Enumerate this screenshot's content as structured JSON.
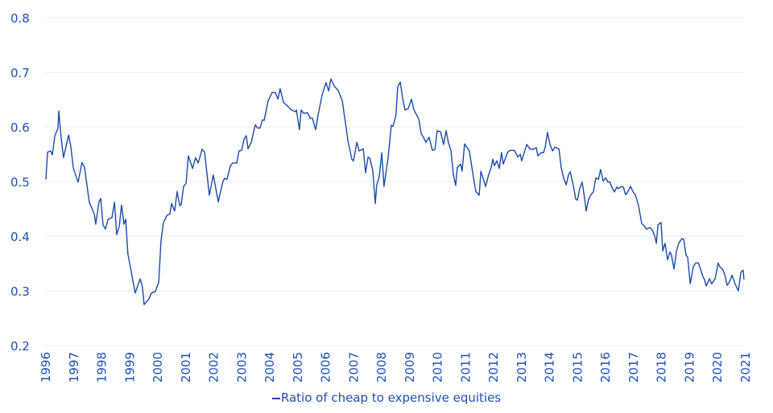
{
  "chart_data": {
    "type": "line",
    "title": "",
    "xlabel": "",
    "ylabel": "",
    "xlim": [
      1996,
      2021
    ],
    "ylim": [
      0.2,
      0.8
    ],
    "grid": true,
    "legend_position": "bottom-center",
    "yticks": [
      "0.2",
      "0.3",
      "0.4",
      "0.5",
      "0.6",
      "0.7",
      "0.8"
    ],
    "xticks": [
      "1996",
      "1997",
      "1998",
      "1999",
      "2000",
      "2001",
      "2002",
      "2003",
      "2004",
      "2005",
      "2006",
      "2007",
      "2008",
      "2009",
      "2010",
      "2011",
      "2012",
      "2013",
      "2014",
      "2015",
      "2016",
      "2017",
      "2018",
      "2019",
      "2020",
      "2021"
    ],
    "colors": {
      "line": "#1a4aad",
      "text": "#1f4fb0",
      "grid": "#e4ecf7"
    },
    "series": [
      {
        "name": "Ratio of cheap to expensive equities",
        "x": [
          1996.0,
          1996.06,
          1996.17,
          1996.23,
          1996.32,
          1996.43,
          1996.46,
          1996.55,
          1996.63,
          1996.81,
          1996.89,
          1996.98,
          1997.15,
          1997.29,
          1997.38,
          1997.55,
          1997.73,
          1997.78,
          1997.9,
          1997.96,
          1998.04,
          1998.13,
          1998.22,
          1998.36,
          1998.45,
          1998.53,
          1998.62,
          1998.7,
          1998.79,
          1998.85,
          1998.93,
          1999.05,
          1999.19,
          1999.37,
          1999.45,
          1999.51,
          1999.68,
          1999.77,
          1999.91,
          2000.03,
          2000.11,
          2000.2,
          2000.32,
          2000.43,
          2000.49,
          2000.6,
          2000.69,
          2000.78,
          2000.83,
          2000.92,
          2001.01,
          2001.09,
          2001.24,
          2001.35,
          2001.44,
          2001.58,
          2001.67,
          2001.84,
          2001.98,
          2002.16,
          2002.33,
          2002.39,
          2002.47,
          2002.59,
          2002.67,
          2002.82,
          2002.9,
          2002.99,
          2003.08,
          2003.16,
          2003.22,
          2003.34,
          2003.48,
          2003.57,
          2003.65,
          2003.74,
          2003.8,
          2003.94,
          2004.08,
          2004.2,
          2004.29,
          2004.37,
          2004.49,
          2004.66,
          2004.77,
          2004.92,
          2004.95,
          2005.06,
          2005.12,
          2005.21,
          2005.35,
          2005.44,
          2005.52,
          2005.64,
          2005.73,
          2005.87,
          2006.01,
          2006.1,
          2006.18,
          2006.3,
          2006.44,
          2006.59,
          2006.79,
          2006.93,
          2006.99,
          2007.11,
          2007.19,
          2007.34,
          2007.42,
          2007.51,
          2007.57,
          2007.68,
          2007.77,
          2007.82,
          2007.91,
          2008.0,
          2008.08,
          2008.23,
          2008.34,
          2008.4,
          2008.51,
          2008.57,
          2008.66,
          2008.75,
          2008.83,
          2008.95,
          2009.06,
          2009.15,
          2009.32,
          2009.41,
          2009.49,
          2009.58,
          2009.69,
          2009.81,
          2009.9,
          2009.98,
          2010.1,
          2010.21,
          2010.3,
          2010.38,
          2010.47,
          2010.56,
          2010.64,
          2010.7,
          2010.82,
          2010.87,
          2010.96,
          2011.13,
          2011.25,
          2011.36,
          2011.48,
          2011.54,
          2011.71,
          2011.82,
          2011.91,
          2011.97,
          2012.02,
          2012.11,
          2012.2,
          2012.28,
          2012.34,
          2012.49,
          2012.57,
          2012.74,
          2012.86,
          2012.95,
          2013.0,
          2013.18,
          2013.29,
          2013.41,
          2013.52,
          2013.58,
          2013.69,
          2013.78,
          2013.84,
          2013.92,
          2014.01,
          2014.1,
          2014.18,
          2014.33,
          2014.41,
          2014.5,
          2014.59,
          2014.67,
          2014.73,
          2014.84,
          2014.93,
          2014.99,
          2015.07,
          2015.16,
          2015.25,
          2015.3,
          2015.39,
          2015.48,
          2015.56,
          2015.65,
          2015.74,
          2015.82,
          2015.91,
          2016.0,
          2016.08,
          2016.14,
          2016.22,
          2016.31,
          2016.4,
          2016.45,
          2016.57,
          2016.63,
          2016.71,
          2016.8,
          2016.89,
          2017.0,
          2017.06,
          2017.17,
          2017.29,
          2017.38,
          2017.46,
          2017.58,
          2017.66,
          2017.75,
          2017.81,
          2017.87,
          2017.98,
          2018.04,
          2018.12,
          2018.21,
          2018.3,
          2018.35,
          2018.44,
          2018.53,
          2018.61,
          2018.73,
          2018.79,
          2018.87,
          2018.93,
          2019.02,
          2019.13,
          2019.22,
          2019.31,
          2019.39,
          2019.48,
          2019.53,
          2019.59,
          2019.71,
          2019.79,
          2019.91,
          2020.02,
          2020.08,
          2020.17,
          2020.25,
          2020.34,
          2020.45,
          2020.51,
          2020.63,
          2020.74,
          2020.83,
          2020.91,
          2020.94
        ],
        "y": [
          0.504,
          0.554,
          0.556,
          0.549,
          0.584,
          0.597,
          0.629,
          0.578,
          0.544,
          0.585,
          0.565,
          0.524,
          0.499,
          0.535,
          0.526,
          0.462,
          0.441,
          0.422,
          0.463,
          0.469,
          0.421,
          0.413,
          0.431,
          0.434,
          0.462,
          0.403,
          0.418,
          0.457,
          0.422,
          0.431,
          0.368,
          0.335,
          0.296,
          0.322,
          0.307,
          0.275,
          0.285,
          0.296,
          0.299,
          0.315,
          0.391,
          0.425,
          0.438,
          0.441,
          0.46,
          0.446,
          0.482,
          0.456,
          0.457,
          0.491,
          0.497,
          0.547,
          0.524,
          0.544,
          0.534,
          0.559,
          0.554,
          0.475,
          0.512,
          0.463,
          0.501,
          0.506,
          0.504,
          0.529,
          0.534,
          0.534,
          0.556,
          0.557,
          0.578,
          0.584,
          0.56,
          0.572,
          0.604,
          0.598,
          0.598,
          0.613,
          0.612,
          0.648,
          0.663,
          0.663,
          0.651,
          0.67,
          0.645,
          0.637,
          0.631,
          0.628,
          0.631,
          0.595,
          0.631,
          0.625,
          0.626,
          0.616,
          0.616,
          0.595,
          0.623,
          0.659,
          0.681,
          0.666,
          0.688,
          0.675,
          0.667,
          0.648,
          0.575,
          0.541,
          0.538,
          0.572,
          0.556,
          0.56,
          0.516,
          0.545,
          0.543,
          0.52,
          0.46,
          0.494,
          0.509,
          0.553,
          0.491,
          0.545,
          0.603,
          0.601,
          0.622,
          0.673,
          0.682,
          0.651,
          0.631,
          0.634,
          0.651,
          0.631,
          0.615,
          0.588,
          0.581,
          0.572,
          0.581,
          0.557,
          0.559,
          0.593,
          0.591,
          0.568,
          0.593,
          0.572,
          0.557,
          0.513,
          0.493,
          0.526,
          0.532,
          0.519,
          0.569,
          0.556,
          0.516,
          0.482,
          0.475,
          0.519,
          0.491,
          0.513,
          0.526,
          0.541,
          0.529,
          0.538,
          0.524,
          0.553,
          0.532,
          0.553,
          0.557,
          0.557,
          0.545,
          0.55,
          0.538,
          0.568,
          0.56,
          0.559,
          0.562,
          0.547,
          0.553,
          0.553,
          0.563,
          0.59,
          0.568,
          0.556,
          0.563,
          0.56,
          0.526,
          0.506,
          0.494,
          0.512,
          0.518,
          0.494,
          0.468,
          0.466,
          0.487,
          0.499,
          0.469,
          0.446,
          0.468,
          0.476,
          0.481,
          0.507,
          0.504,
          0.522,
          0.501,
          0.507,
          0.499,
          0.5,
          0.49,
          0.481,
          0.49,
          0.487,
          0.491,
          0.49,
          0.476,
          0.482,
          0.491,
          0.479,
          0.476,
          0.457,
          0.423,
          0.419,
          0.413,
          0.416,
          0.412,
          0.401,
          0.387,
          0.421,
          0.425,
          0.373,
          0.387,
          0.357,
          0.371,
          0.366,
          0.34,
          0.372,
          0.387,
          0.396,
          0.394,
          0.365,
          0.362,
          0.313,
          0.344,
          0.351,
          0.351,
          0.34,
          0.325,
          0.321,
          0.309,
          0.322,
          0.313,
          0.322,
          0.351,
          0.344,
          0.34,
          0.331,
          0.31,
          0.319,
          0.329,
          0.312,
          0.3,
          0.334,
          0.338,
          0.321
        ]
      }
    ]
  }
}
